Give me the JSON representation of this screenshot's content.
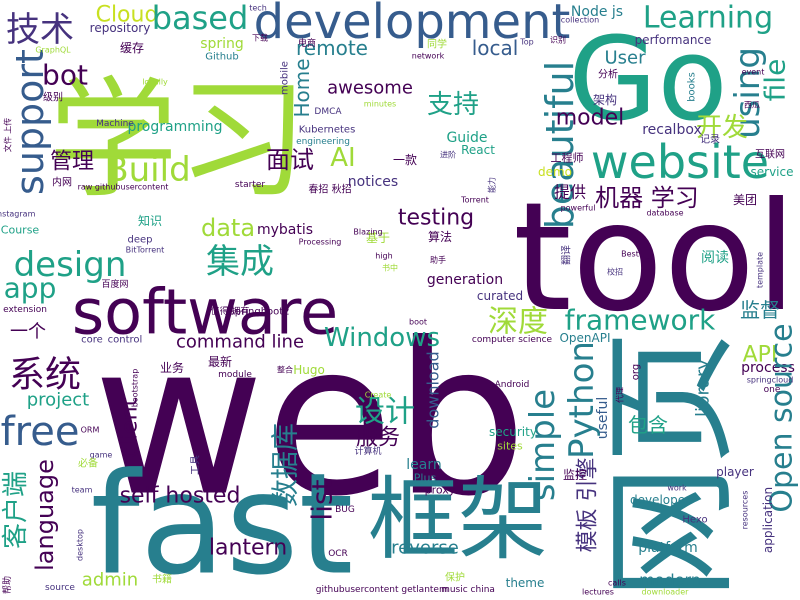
{
  "words": [
    "学习",
    "web",
    "tool",
    "Go",
    "网页",
    "框架",
    "fast",
    "software",
    "development",
    "website",
    "Learning",
    "file",
    "Cloud",
    "based",
    "技术",
    "support",
    "bot",
    "Home",
    "remote",
    "awesome",
    "local",
    "using",
    "支持",
    "beautiful",
    "model",
    "User",
    "分析",
    "架构",
    "开发",
    "recalbox",
    "记录",
    "互联网",
    "面试",
    "AI",
    "一款",
    "notices",
    "Build",
    "管理",
    "programming",
    "Machine",
    "Kubernetes",
    "engineering",
    "DMCA",
    "Guide",
    "React",
    "demo",
    "工程师",
    "提供",
    "机器 学习",
    "service",
    "美团",
    "testing",
    "data",
    "mybatis",
    "基于",
    "算法",
    "集成",
    "design",
    "app",
    "知识",
    "Course",
    "deep",
    "BitTorrent",
    "Processing",
    "Blazing",
    "值得 拥有",
    "Springboot2",
    "百度网",
    "深度",
    "framework",
    "阅读",
    "generation",
    "curated",
    "监督",
    "一个",
    "Windows",
    "command line",
    "API",
    "系统",
    "project",
    "process",
    "设计",
    "Python",
    "Open source",
    "simple",
    "client",
    "free",
    "包含",
    "useful",
    "library",
    "服务",
    "language",
    "客户端",
    "self hosted",
    "数据库",
    "list",
    "模板 引擎",
    "lantern",
    "admin",
    "reverse",
    "theme",
    "modern",
    "platform",
    "developer",
    "player",
    "security",
    "sites",
    "learn",
    "Plus",
    "监控",
    "download",
    "org",
    "最新",
    "业务",
    "Hugo",
    "整合",
    "bootstrap",
    "module",
    "computer science",
    "OpenAPI",
    "Android",
    "Create",
    "ORM",
    "game",
    "必备",
    "team",
    "工具",
    "BUG",
    "计算机",
    "proxy",
    "OCR",
    "githubusercontent getlantern",
    "music china",
    "保护",
    "lectures",
    "calls",
    "downloader",
    "Hexo",
    "work",
    "application",
    "resources",
    "source",
    "书籍",
    "帮助",
    "desktop",
    "one",
    "springcloud",
    "代理",
    "Node js",
    "spring",
    "缓存",
    "repository",
    "Github",
    "下载",
    "tech",
    "电商",
    "同学",
    "network",
    "Top",
    "识别",
    "collection",
    "performance",
    "event",
    "西瓜",
    "books",
    "mobile",
    "minutes",
    "进阶",
    "能力",
    "Torrent",
    "春招 秋招",
    "starter",
    "raw githubusercontent",
    "内网",
    "Instagram",
    "GraphQL",
    "locally",
    "级别",
    "文件 上传",
    "database",
    "powerful",
    "Best",
    "use",
    "校招",
    "template",
    "high",
    "书中",
    "助手",
    "翻译",
    "extension",
    "core",
    "control",
    "boot"
  ]
}
